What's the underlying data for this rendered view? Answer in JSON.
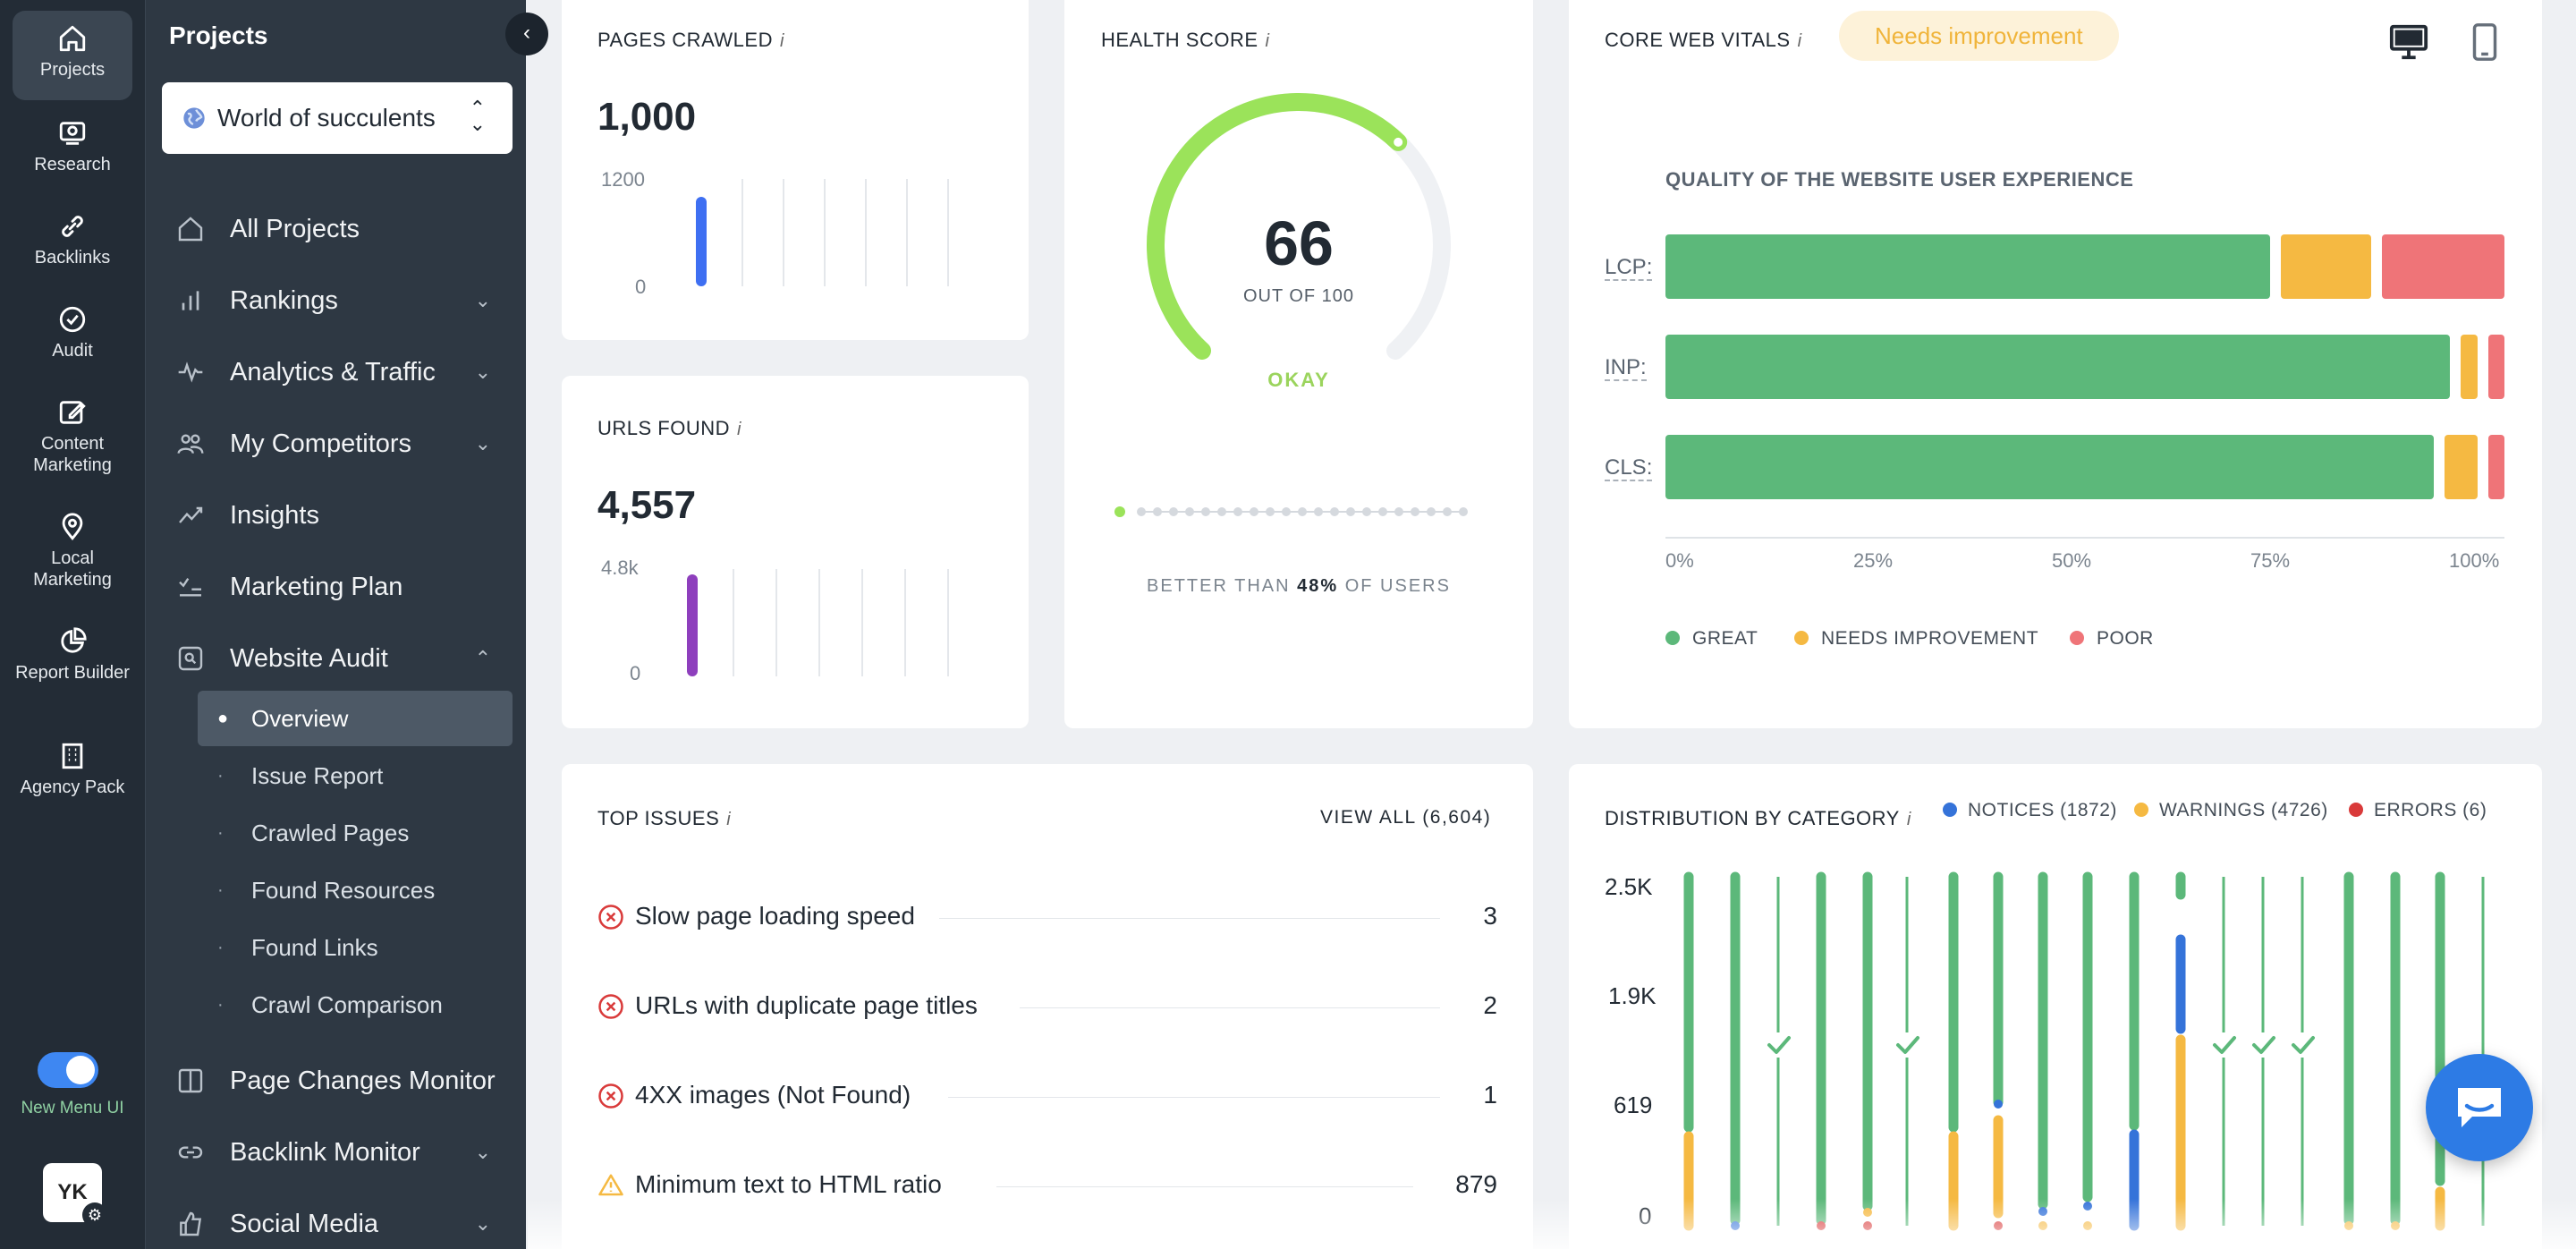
{
  "rail": {
    "items": [
      {
        "label": "Projects"
      },
      {
        "label": "Research"
      },
      {
        "label": "Backlinks"
      },
      {
        "label": "Audit"
      },
      {
        "label": "Content Marketing"
      },
      {
        "label": "Local Marketing"
      },
      {
        "label": "Report Builder"
      },
      {
        "label": "Agency Pack"
      }
    ],
    "toggle_label": "New Menu UI",
    "avatar_initials": "YK"
  },
  "sidebar": {
    "title": "Projects",
    "project_name": "World of succulents",
    "nav": [
      {
        "label": "All Projects",
        "icon": "home-icon"
      },
      {
        "label": "Rankings",
        "icon": "bar-chart-icon"
      },
      {
        "label": "Analytics & Traffic",
        "icon": "pulse-icon"
      },
      {
        "label": "My Competitors",
        "icon": "users-icon"
      },
      {
        "label": "Insights",
        "icon": "trend-icon"
      },
      {
        "label": "Marketing Plan",
        "icon": "checklist-icon"
      },
      {
        "label": "Website Audit",
        "icon": "audit-icon"
      }
    ],
    "audit_sub": [
      {
        "label": "Overview"
      },
      {
        "label": "Issue Report"
      },
      {
        "label": "Crawled Pages"
      },
      {
        "label": "Found Resources"
      },
      {
        "label": "Found Links"
      },
      {
        "label": "Crawl Comparison"
      }
    ],
    "nav_bottom": [
      {
        "label": "Page Changes Monitor"
      },
      {
        "label": "Backlink Monitor"
      },
      {
        "label": "Social Media"
      }
    ]
  },
  "pages_crawled": {
    "title": "PAGES CRAWLED",
    "value": "1,000",
    "axis_max": "1200",
    "axis_min": "0",
    "color": "#3e6ff2"
  },
  "urls_found": {
    "title": "URLS FOUND",
    "value": "4,557",
    "axis_max": "4.8k",
    "axis_min": "0",
    "color": "#8e3fbd"
  },
  "health": {
    "title": "HEALTH SCORE",
    "score": "66",
    "out_of": "OUT OF 100",
    "status": "OKAY",
    "better_prefix": "BETTER THAN ",
    "better_value": "48%",
    "better_suffix": " OF USERS",
    "score_value": 66
  },
  "cwv": {
    "title": "CORE WEB VITALS",
    "badge": "Needs improvement",
    "subtitle": "QUALITY OF THE WEBSITE USER EXPERIENCE",
    "rows": [
      {
        "label": "LCP:",
        "great": 74,
        "needs": 11,
        "poor": 15
      },
      {
        "label": "INP:",
        "great": 96,
        "needs": 2,
        "poor": 2
      },
      {
        "label": "CLS:",
        "great": 94,
        "needs": 4,
        "poor": 2
      }
    ],
    "ticks": [
      "0%",
      "25%",
      "50%",
      "75%",
      "100%"
    ],
    "legend": [
      "GREAT",
      "NEEDS IMPROVEMENT",
      "POOR"
    ],
    "colors": {
      "great": "#5cb87a",
      "needs": "#f5b942",
      "poor": "#ef7478"
    }
  },
  "top_issues": {
    "title": "TOP ISSUES",
    "view_all": "VIEW ALL (6,604)",
    "items": [
      {
        "label": "Slow page loading speed",
        "count": "3",
        "severity": "error"
      },
      {
        "label": "URLs with duplicate page titles",
        "count": "2",
        "severity": "error"
      },
      {
        "label": "4XX images (Not Found)",
        "count": "1",
        "severity": "error"
      },
      {
        "label": "Minimum text to HTML ratio",
        "count": "879",
        "severity": "warning"
      }
    ]
  },
  "distribution": {
    "title": "DISTRIBUTION BY CATEGORY",
    "legend": [
      {
        "label": "NOTICES (1872)",
        "color": "#3573d9"
      },
      {
        "label": "WARNINGS (4726)",
        "color": "#f5b942"
      },
      {
        "label": "ERRORS (6)",
        "color": "#d93a3a"
      }
    ],
    "y_ticks": [
      "2.5K",
      "1.9K",
      "619",
      "0"
    ]
  }
}
